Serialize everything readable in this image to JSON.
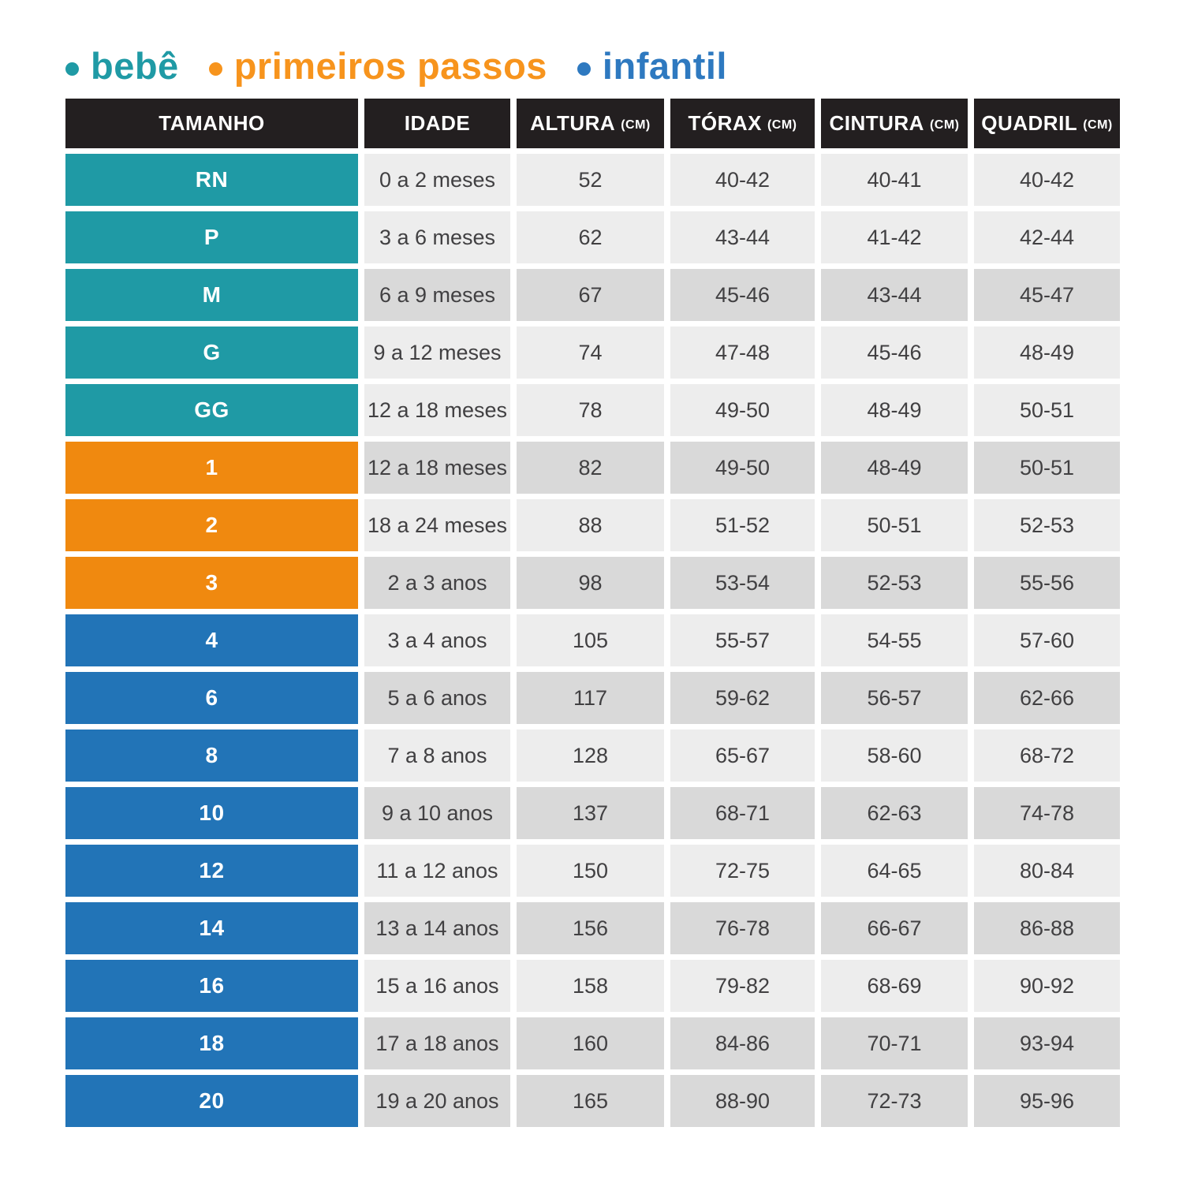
{
  "legend": {
    "items": [
      {
        "id": "bebe",
        "label": "bebê",
        "color": "#1f9aa5"
      },
      {
        "id": "primeiros-passos",
        "label": "primeiros passos",
        "color": "#f7941d"
      },
      {
        "id": "infantil",
        "label": "infantil",
        "color": "#2e79c0"
      }
    ]
  },
  "colors": {
    "header_bg": "#231f20",
    "header_text": "#ffffff",
    "row_light": "#ededed",
    "row_dark": "#d9d9d9",
    "cell_text": "#414042",
    "group_bebe": "#1f9aa5",
    "group_primeiros_passos": "#f0890f",
    "group_infantil": "#2274b7"
  },
  "table": {
    "columns": [
      {
        "label": "TAMANHO",
        "unit": ""
      },
      {
        "label": "IDADE",
        "unit": ""
      },
      {
        "label": "ALTURA",
        "unit": "(CM)"
      },
      {
        "label": "TÓRAX",
        "unit": "(CM)"
      },
      {
        "label": "CINTURA",
        "unit": "(CM)"
      },
      {
        "label": "QUADRIL",
        "unit": "(CM)"
      }
    ],
    "rows": [
      {
        "size": "RN",
        "group": "group_bebe",
        "shade": "light",
        "idade": "0 a 2 meses",
        "altura": "52",
        "torax": "40-42",
        "cintura": "40-41",
        "quadril": "40-42"
      },
      {
        "size": "P",
        "group": "group_bebe",
        "shade": "light",
        "idade": "3 a 6 meses",
        "altura": "62",
        "torax": "43-44",
        "cintura": "41-42",
        "quadril": "42-44"
      },
      {
        "size": "M",
        "group": "group_bebe",
        "shade": "dark",
        "idade": "6 a 9 meses",
        "altura": "67",
        "torax": "45-46",
        "cintura": "43-44",
        "quadril": "45-47"
      },
      {
        "size": "G",
        "group": "group_bebe",
        "shade": "light",
        "idade": "9 a 12 meses",
        "altura": "74",
        "torax": "47-48",
        "cintura": "45-46",
        "quadril": "48-49"
      },
      {
        "size": "GG",
        "group": "group_bebe",
        "shade": "light",
        "idade": "12 a 18 meses",
        "altura": "78",
        "torax": "49-50",
        "cintura": "48-49",
        "quadril": "50-51"
      },
      {
        "size": "1",
        "group": "group_primeiros_passos",
        "shade": "dark",
        "idade": "12 a 18 meses",
        "altura": "82",
        "torax": "49-50",
        "cintura": "48-49",
        "quadril": "50-51"
      },
      {
        "size": "2",
        "group": "group_primeiros_passos",
        "shade": "light",
        "idade": "18 a 24 meses",
        "altura": "88",
        "torax": "51-52",
        "cintura": "50-51",
        "quadril": "52-53"
      },
      {
        "size": "3",
        "group": "group_primeiros_passos",
        "shade": "dark",
        "idade": "2 a 3 anos",
        "altura": "98",
        "torax": "53-54",
        "cintura": "52-53",
        "quadril": "55-56"
      },
      {
        "size": "4",
        "group": "group_infantil",
        "shade": "light",
        "idade": "3 a 4 anos",
        "altura": "105",
        "torax": "55-57",
        "cintura": "54-55",
        "quadril": "57-60"
      },
      {
        "size": "6",
        "group": "group_infantil",
        "shade": "dark",
        "idade": "5 a 6 anos",
        "altura": "117",
        "torax": "59-62",
        "cintura": "56-57",
        "quadril": "62-66"
      },
      {
        "size": "8",
        "group": "group_infantil",
        "shade": "light",
        "idade": "7 a 8 anos",
        "altura": "128",
        "torax": "65-67",
        "cintura": "58-60",
        "quadril": "68-72"
      },
      {
        "size": "10",
        "group": "group_infantil",
        "shade": "dark",
        "idade": "9 a 10 anos",
        "altura": "137",
        "torax": "68-71",
        "cintura": "62-63",
        "quadril": "74-78"
      },
      {
        "size": "12",
        "group": "group_infantil",
        "shade": "light",
        "idade": "11 a 12 anos",
        "altura": "150",
        "torax": "72-75",
        "cintura": "64-65",
        "quadril": "80-84"
      },
      {
        "size": "14",
        "group": "group_infantil",
        "shade": "dark",
        "idade": "13 a 14 anos",
        "altura": "156",
        "torax": "76-78",
        "cintura": "66-67",
        "quadril": "86-88"
      },
      {
        "size": "16",
        "group": "group_infantil",
        "shade": "light",
        "idade": "15 a 16 anos",
        "altura": "158",
        "torax": "79-82",
        "cintura": "68-69",
        "quadril": "90-92"
      },
      {
        "size": "18",
        "group": "group_infantil",
        "shade": "dark",
        "idade": "17 a 18 anos",
        "altura": "160",
        "torax": "84-86",
        "cintura": "70-71",
        "quadril": "93-94"
      },
      {
        "size": "20",
        "group": "group_infantil",
        "shade": "dark",
        "idade": "19 a 20 anos",
        "altura": "165",
        "torax": "88-90",
        "cintura": "72-73",
        "quadril": "95-96"
      }
    ]
  },
  "chart_data": {
    "type": "table",
    "title": "",
    "legend": [
      "bebê",
      "primeiros passos",
      "infantil"
    ],
    "legend_position": "top-left",
    "columns": [
      "TAMANHO",
      "IDADE",
      "ALTURA (CM)",
      "TÓRAX (CM)",
      "CINTURA (CM)",
      "QUADRIL (CM)"
    ],
    "rows": [
      [
        "RN",
        "0 a 2 meses",
        "52",
        "40-42",
        "40-41",
        "40-42"
      ],
      [
        "P",
        "3 a 6 meses",
        "62",
        "43-44",
        "41-42",
        "42-44"
      ],
      [
        "M",
        "6 a 9 meses",
        "67",
        "45-46",
        "43-44",
        "45-47"
      ],
      [
        "G",
        "9 a 12 meses",
        "74",
        "47-48",
        "45-46",
        "48-49"
      ],
      [
        "GG",
        "12 a 18 meses",
        "78",
        "49-50",
        "48-49",
        "50-51"
      ],
      [
        "1",
        "12 a 18 meses",
        "82",
        "49-50",
        "48-49",
        "50-51"
      ],
      [
        "2",
        "18 a 24 meses",
        "88",
        "51-52",
        "50-51",
        "52-53"
      ],
      [
        "3",
        "2 a 3 anos",
        "98",
        "53-54",
        "52-53",
        "55-56"
      ],
      [
        "4",
        "3 a 4 anos",
        "105",
        "55-57",
        "54-55",
        "57-60"
      ],
      [
        "6",
        "5 a 6 anos",
        "117",
        "59-62",
        "56-57",
        "62-66"
      ],
      [
        "8",
        "7 a 8 anos",
        "128",
        "65-67",
        "58-60",
        "68-72"
      ],
      [
        "10",
        "9 a 10 anos",
        "137",
        "68-71",
        "62-63",
        "74-78"
      ],
      [
        "12",
        "11 a 12 anos",
        "150",
        "72-75",
        "64-65",
        "80-84"
      ],
      [
        "14",
        "13 a 14 anos",
        "156",
        "76-78",
        "66-67",
        "86-88"
      ],
      [
        "16",
        "15 a 16 anos",
        "158",
        "79-82",
        "68-69",
        "90-92"
      ],
      [
        "18",
        "17 a 18 anos",
        "160",
        "84-86",
        "70-71",
        "93-94"
      ],
      [
        "20",
        "19 a 20 anos",
        "165",
        "88-90",
        "72-73",
        "95-96"
      ]
    ],
    "row_groups": {
      "bebê": [
        "RN",
        "P",
        "M",
        "G",
        "GG"
      ],
      "primeiros passos": [
        "1",
        "2",
        "3"
      ],
      "infantil": [
        "4",
        "6",
        "8",
        "10",
        "12",
        "14",
        "16",
        "18",
        "20"
      ]
    }
  }
}
